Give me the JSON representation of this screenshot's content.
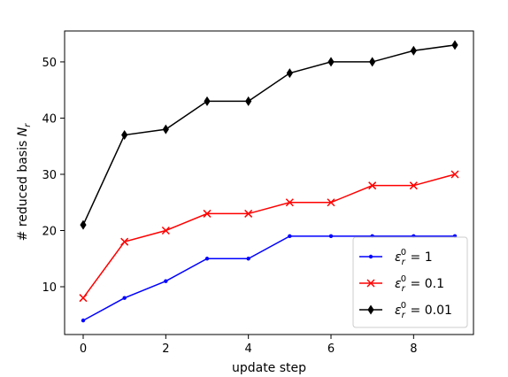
{
  "chart_data": {
    "type": "line",
    "xlabel": "update step",
    "ylabel_main": "# reduced basis ",
    "ylabel_symbol": "N",
    "ylabel_sub": "r",
    "xlim": [
      -0.45,
      9.45
    ],
    "ylim": [
      1.5,
      55.5
    ],
    "xticks": [
      0,
      2,
      4,
      6,
      8
    ],
    "yticks": [
      10,
      20,
      30,
      40,
      50
    ],
    "legend_position": "lower right",
    "x": [
      0,
      1,
      2,
      3,
      4,
      5,
      6,
      7,
      8,
      9
    ],
    "series": [
      {
        "name_prefix": "ε",
        "name_sub": "r",
        "name_sup": "0",
        "name_value": " = 1",
        "color": "#0000ff",
        "marker": "dot",
        "values": [
          4,
          8,
          11,
          15,
          15,
          19,
          19,
          19,
          19,
          19
        ]
      },
      {
        "name_prefix": "ε",
        "name_sub": "r",
        "name_sup": "0",
        "name_value": " = 0.1",
        "color": "#ff0000",
        "marker": "x",
        "values": [
          8,
          18,
          20,
          23,
          23,
          25,
          25,
          28,
          28,
          30
        ]
      },
      {
        "name_prefix": "ε",
        "name_sub": "r",
        "name_sup": "0",
        "name_value": " = 0.01",
        "color": "#000000",
        "marker": "diamond",
        "values": [
          21,
          37,
          38,
          43,
          43,
          48,
          50,
          50,
          52,
          53
        ]
      }
    ]
  }
}
